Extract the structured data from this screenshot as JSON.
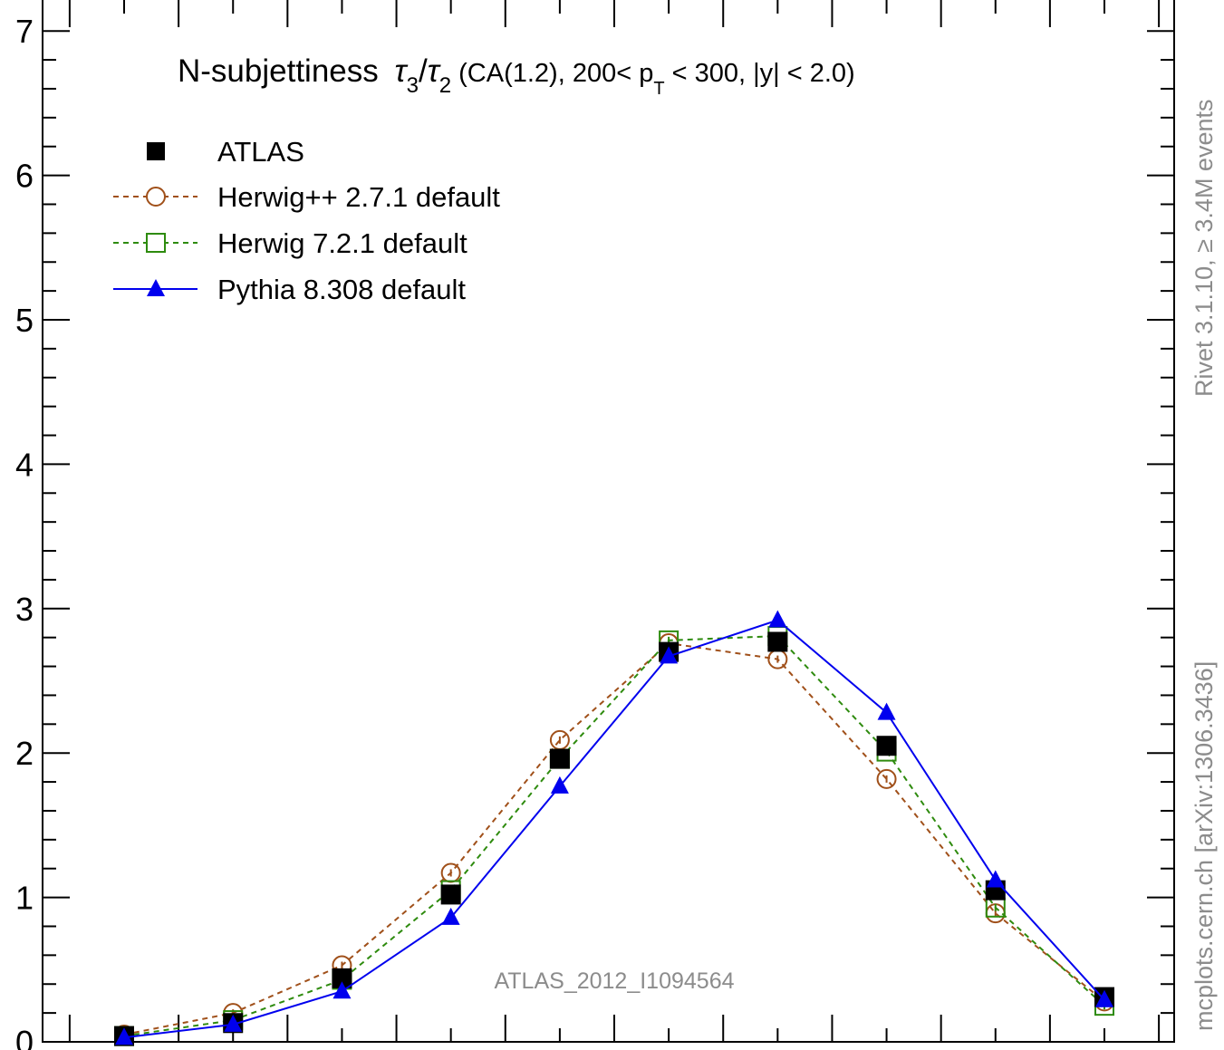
{
  "chart_data": {
    "type": "line",
    "title": {
      "main": "N-subjettiness",
      "tau3": "τ",
      "tau3_sub": "3",
      "slash": "/",
      "tau2": "τ",
      "tau2_sub": "2",
      "rest_a": "(CA(1.2), 200< p",
      "pt_sub": "T",
      "rest_b": " < 300, |y| < 2.0)"
    },
    "analysis_label": "ATLAS_2012_I1094564",
    "side_label_upper": "Rivet 3.1.10, ≥ 3.4M events",
    "side_label_lower": "mcplots.cern.ch [arXiv:1306.3436]",
    "ylim": [
      0,
      7.2
    ],
    "yticks": [
      {
        "value": 0,
        "label": "0"
      },
      {
        "value": 1,
        "label": "1"
      },
      {
        "value": 2,
        "label": "2"
      },
      {
        "value": 3,
        "label": "3"
      },
      {
        "value": 4,
        "label": "4"
      },
      {
        "value": 5,
        "label": "5"
      },
      {
        "value": 6,
        "label": "6"
      },
      {
        "value": 7,
        "label": "7"
      }
    ],
    "xlim": [
      0,
      1
    ],
    "x": [
      0.05,
      0.15,
      0.25,
      0.35,
      0.45,
      0.55,
      0.65,
      0.75,
      0.85,
      0.95
    ],
    "series": [
      {
        "name": "ATLAS",
        "color": "#000000",
        "marker": "filled-square",
        "line": "none",
        "values": [
          0.04,
          0.13,
          0.44,
          1.02,
          1.96,
          2.7,
          2.77,
          2.05,
          1.05,
          0.31
        ]
      },
      {
        "name": "Herwig++ 2.7.1 default",
        "color": "#a0501a",
        "marker": "open-circle",
        "line": "dashed",
        "values": [
          0.05,
          0.2,
          0.53,
          1.17,
          2.09,
          2.76,
          2.65,
          1.82,
          0.89,
          0.28
        ]
      },
      {
        "name": "Herwig 7.2.1 default",
        "color": "#2e8b0e",
        "marker": "open-square",
        "line": "dashed",
        "values": [
          0.04,
          0.15,
          0.43,
          1.05,
          1.96,
          2.78,
          2.81,
          2.01,
          0.93,
          0.25
        ]
      },
      {
        "name": "Pythia 8.308 default",
        "color": "#0000ee",
        "marker": "filled-triangle",
        "line": "solid",
        "values": [
          0.03,
          0.12,
          0.35,
          0.86,
          1.77,
          2.67,
          2.92,
          2.28,
          1.12,
          0.29
        ]
      }
    ]
  }
}
